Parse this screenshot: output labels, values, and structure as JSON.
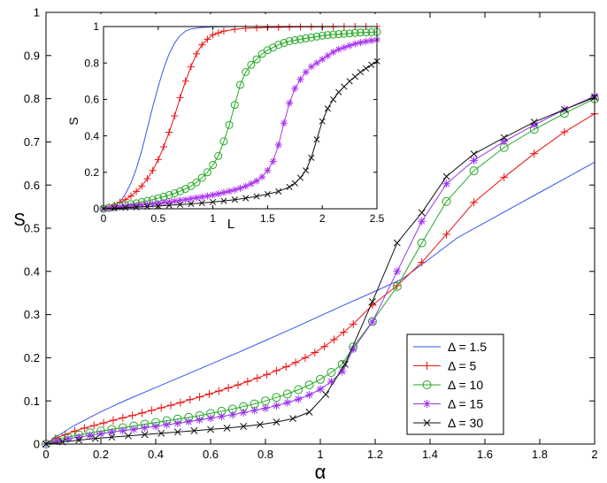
{
  "chart_data": [
    {
      "id": "main",
      "type": "line",
      "xlabel": "α",
      "ylabel": "S",
      "xlim": [
        0,
        2
      ],
      "ylim": [
        0,
        1
      ],
      "xticks": [
        0,
        0.2,
        0.4,
        0.6,
        0.8,
        1,
        1.2,
        1.4,
        1.6,
        1.8,
        2
      ],
      "xtick_labels": [
        "0",
        "0.2",
        "0.4",
        "0.6",
        "0.8",
        "1",
        "1.2",
        "1.4",
        "1.6",
        "1.8",
        "2"
      ],
      "yticks": [
        0,
        0.1,
        0.2,
        0.3,
        0.4,
        0.5,
        0.6,
        0.7,
        0.8,
        0.9,
        1
      ],
      "ytick_labels": [
        "0",
        "0.1",
        "0.2",
        "0.3",
        "0.4",
        "0.5",
        "0.6",
        "0.7",
        "0.8",
        "0.9",
        "1"
      ],
      "legend_position": "lower-right",
      "series": [
        {
          "name": "Δ = 1.5",
          "color": "#3355ee",
          "marker": "none",
          "x": [
            0,
            0.02,
            0.05,
            0.1,
            0.2,
            0.3,
            0.4,
            0.5,
            0.6,
            0.7,
            0.8,
            0.9,
            1.0,
            1.1,
            1.2,
            1.3,
            1.4,
            1.5,
            1.6,
            1.7,
            1.8,
            1.9,
            2.0
          ],
          "y": [
            0,
            0.01,
            0.022,
            0.042,
            0.075,
            0.104,
            0.131,
            0.158,
            0.185,
            0.212,
            0.24,
            0.268,
            0.297,
            0.326,
            0.354,
            0.383,
            0.43,
            0.478,
            0.513,
            0.548,
            0.583,
            0.618,
            0.653
          ]
        },
        {
          "name": "Δ = 5",
          "color": "#ee1111",
          "marker": "plus",
          "x": [
            0,
            0.035,
            0.07,
            0.105,
            0.14,
            0.175,
            0.21,
            0.245,
            0.28,
            0.315,
            0.35,
            0.385,
            0.42,
            0.455,
            0.49,
            0.525,
            0.56,
            0.595,
            0.63,
            0.665,
            0.7,
            0.735,
            0.77,
            0.805,
            0.84,
            0.875,
            0.91,
            0.945,
            0.98,
            1.015,
            1.05,
            1.085,
            1.12,
            1.19,
            1.28,
            1.37,
            1.46,
            1.56,
            1.67,
            1.78,
            1.89,
            2.0
          ],
          "y": [
            0,
            0.013,
            0.022,
            0.03,
            0.037,
            0.043,
            0.049,
            0.055,
            0.061,
            0.066,
            0.072,
            0.078,
            0.084,
            0.09,
            0.096,
            0.103,
            0.109,
            0.116,
            0.123,
            0.13,
            0.137,
            0.145,
            0.153,
            0.161,
            0.17,
            0.179,
            0.189,
            0.2,
            0.212,
            0.226,
            0.242,
            0.259,
            0.278,
            0.322,
            0.367,
            0.421,
            0.486,
            0.56,
            0.618,
            0.673,
            0.723,
            0.765
          ]
        },
        {
          "name": "Δ = 10",
          "color": "#22aa22",
          "marker": "circle",
          "x": [
            0,
            0.04,
            0.08,
            0.12,
            0.16,
            0.2,
            0.24,
            0.28,
            0.32,
            0.36,
            0.4,
            0.44,
            0.48,
            0.52,
            0.56,
            0.6,
            0.64,
            0.68,
            0.72,
            0.76,
            0.8,
            0.84,
            0.88,
            0.92,
            0.96,
            1.0,
            1.04,
            1.08,
            1.12,
            1.19,
            1.28,
            1.37,
            1.46,
            1.56,
            1.67,
            1.78,
            1.89,
            2.0
          ],
          "y": [
            0,
            0.01,
            0.016,
            0.021,
            0.026,
            0.03,
            0.034,
            0.038,
            0.042,
            0.046,
            0.05,
            0.054,
            0.058,
            0.062,
            0.066,
            0.071,
            0.076,
            0.081,
            0.087,
            0.093,
            0.1,
            0.108,
            0.116,
            0.126,
            0.137,
            0.15,
            0.166,
            0.185,
            0.225,
            0.284,
            0.365,
            0.466,
            0.562,
            0.633,
            0.687,
            0.729,
            0.766,
            0.8
          ]
        },
        {
          "name": "Δ = 15",
          "color": "#9933ee",
          "marker": "star",
          "x": [
            0,
            0.04,
            0.08,
            0.12,
            0.16,
            0.2,
            0.24,
            0.28,
            0.32,
            0.36,
            0.4,
            0.44,
            0.48,
            0.52,
            0.56,
            0.6,
            0.64,
            0.68,
            0.72,
            0.76,
            0.8,
            0.84,
            0.88,
            0.92,
            0.96,
            1.0,
            1.04,
            1.08,
            1.12,
            1.19,
            1.28,
            1.37,
            1.46,
            1.56,
            1.67,
            1.78,
            1.89,
            2.0
          ],
          "y": [
            0,
            0.007,
            0.012,
            0.016,
            0.02,
            0.024,
            0.028,
            0.031,
            0.034,
            0.038,
            0.041,
            0.045,
            0.048,
            0.052,
            0.056,
            0.06,
            0.064,
            0.068,
            0.073,
            0.078,
            0.083,
            0.089,
            0.096,
            0.104,
            0.114,
            0.127,
            0.145,
            0.168,
            0.22,
            0.283,
            0.4,
            0.516,
            0.603,
            0.657,
            0.701,
            0.739,
            0.775,
            0.806
          ]
        },
        {
          "name": "Δ = 30",
          "color": "#111111",
          "marker": "x",
          "x": [
            0,
            0.06,
            0.12,
            0.18,
            0.24,
            0.3,
            0.36,
            0.42,
            0.48,
            0.54,
            0.6,
            0.66,
            0.72,
            0.78,
            0.84,
            0.9,
            0.96,
            1.02,
            1.09,
            1.19,
            1.28,
            1.37,
            1.46,
            1.56,
            1.67,
            1.78,
            1.89,
            2.0
          ],
          "y": [
            0,
            0.005,
            0.009,
            0.013,
            0.016,
            0.019,
            0.022,
            0.025,
            0.028,
            0.031,
            0.034,
            0.037,
            0.041,
            0.045,
            0.051,
            0.059,
            0.074,
            0.115,
            0.185,
            0.33,
            0.466,
            0.536,
            0.62,
            0.672,
            0.71,
            0.746,
            0.775,
            0.803
          ]
        }
      ]
    },
    {
      "id": "inset",
      "type": "line",
      "xlabel": "L",
      "ylabel": "S",
      "xlim": [
        0,
        2.5
      ],
      "ylim": [
        0,
        1
      ],
      "xticks": [
        0,
        0.5,
        1,
        1.5,
        2,
        2.5
      ],
      "xtick_labels": [
        "0",
        "0.5",
        "1",
        "1.5",
        "2",
        "2.5"
      ],
      "yticks": [
        0,
        0.2,
        0.4,
        0.6,
        0.8,
        1
      ],
      "ytick_labels": [
        "0",
        "0.2",
        "0.4",
        "0.6",
        "0.8",
        "1"
      ],
      "series": [
        {
          "name": "Δ = 1.5",
          "color": "#3355ee",
          "marker": "none",
          "x": [
            0,
            0.05,
            0.1,
            0.15,
            0.2,
            0.25,
            0.3,
            0.35,
            0.4,
            0.45,
            0.5,
            0.55,
            0.6,
            0.65,
            0.7,
            0.75,
            0.8,
            0.9,
            1.0,
            1.2,
            1.5,
            2.0,
            2.5
          ],
          "y": [
            0,
            0.005,
            0.02,
            0.04,
            0.08,
            0.14,
            0.22,
            0.32,
            0.44,
            0.56,
            0.67,
            0.77,
            0.85,
            0.91,
            0.95,
            0.975,
            0.987,
            0.995,
            0.998,
            1.0,
            1.0,
            1.0,
            1.0
          ]
        },
        {
          "name": "Δ = 5",
          "color": "#ee1111",
          "marker": "plus",
          "x": [
            0,
            0.05,
            0.1,
            0.15,
            0.2,
            0.25,
            0.3,
            0.35,
            0.4,
            0.45,
            0.5,
            0.55,
            0.6,
            0.65,
            0.7,
            0.75,
            0.8,
            0.85,
            0.9,
            0.95,
            1.0,
            1.05,
            1.1,
            1.2,
            1.3,
            1.4,
            1.5,
            1.6,
            1.7,
            1.8,
            1.9,
            2.0,
            2.1,
            2.2,
            2.3,
            2.4,
            2.5
          ],
          "y": [
            0,
            0.01,
            0.02,
            0.035,
            0.05,
            0.07,
            0.095,
            0.125,
            0.165,
            0.21,
            0.27,
            0.34,
            0.42,
            0.51,
            0.61,
            0.7,
            0.78,
            0.85,
            0.9,
            0.93,
            0.955,
            0.965,
            0.975,
            0.985,
            0.99,
            0.993,
            0.995,
            0.996,
            0.997,
            0.998,
            0.998,
            0.999,
            0.999,
            1.0,
            1.0,
            1.0,
            1.0
          ]
        },
        {
          "name": "Δ = 10",
          "color": "#22aa22",
          "marker": "circle",
          "x": [
            0,
            0.05,
            0.1,
            0.15,
            0.2,
            0.25,
            0.3,
            0.35,
            0.4,
            0.45,
            0.5,
            0.55,
            0.6,
            0.65,
            0.7,
            0.75,
            0.8,
            0.85,
            0.9,
            0.95,
            1.0,
            1.05,
            1.1,
            1.15,
            1.2,
            1.25,
            1.3,
            1.35,
            1.4,
            1.45,
            1.5,
            1.55,
            1.6,
            1.65,
            1.7,
            1.75,
            1.8,
            1.85,
            1.9,
            1.95,
            2.0,
            2.05,
            2.1,
            2.15,
            2.2,
            2.25,
            2.3,
            2.35,
            2.4,
            2.45,
            2.5
          ],
          "y": [
            0,
            0.005,
            0.01,
            0.015,
            0.02,
            0.025,
            0.03,
            0.037,
            0.043,
            0.05,
            0.058,
            0.066,
            0.075,
            0.085,
            0.096,
            0.109,
            0.125,
            0.145,
            0.17,
            0.2,
            0.24,
            0.29,
            0.37,
            0.46,
            0.57,
            0.68,
            0.75,
            0.79,
            0.82,
            0.85,
            0.87,
            0.885,
            0.9,
            0.91,
            0.92,
            0.925,
            0.93,
            0.935,
            0.94,
            0.945,
            0.95,
            0.953,
            0.956,
            0.958,
            0.96,
            0.962,
            0.965,
            0.967,
            0.968,
            0.969,
            0.97
          ]
        },
        {
          "name": "Δ = 15",
          "color": "#aa33ee",
          "marker": "star",
          "x": [
            0,
            0.05,
            0.1,
            0.15,
            0.2,
            0.25,
            0.3,
            0.35,
            0.4,
            0.45,
            0.5,
            0.55,
            0.6,
            0.65,
            0.7,
            0.75,
            0.8,
            0.85,
            0.9,
            0.95,
            1.0,
            1.05,
            1.1,
            1.15,
            1.2,
            1.25,
            1.3,
            1.35,
            1.4,
            1.45,
            1.5,
            1.55,
            1.6,
            1.65,
            1.7,
            1.75,
            1.8,
            1.85,
            1.9,
            1.95,
            2.0,
            2.05,
            2.1,
            2.15,
            2.2,
            2.25,
            2.3,
            2.35,
            2.4,
            2.45,
            2.5
          ],
          "y": [
            0,
            0.003,
            0.006,
            0.009,
            0.012,
            0.015,
            0.018,
            0.021,
            0.024,
            0.027,
            0.03,
            0.034,
            0.038,
            0.042,
            0.046,
            0.05,
            0.055,
            0.06,
            0.065,
            0.07,
            0.076,
            0.082,
            0.089,
            0.096,
            0.104,
            0.113,
            0.124,
            0.137,
            0.153,
            0.175,
            0.21,
            0.26,
            0.35,
            0.47,
            0.58,
            0.66,
            0.71,
            0.75,
            0.78,
            0.8,
            0.82,
            0.84,
            0.86,
            0.875,
            0.885,
            0.895,
            0.905,
            0.912,
            0.918,
            0.923,
            0.927
          ]
        },
        {
          "name": "Δ = 30",
          "color": "#111111",
          "marker": "x",
          "x": [
            0,
            0.1,
            0.2,
            0.3,
            0.4,
            0.5,
            0.6,
            0.7,
            0.8,
            0.9,
            1.0,
            1.1,
            1.2,
            1.3,
            1.4,
            1.5,
            1.6,
            1.7,
            1.75,
            1.8,
            1.85,
            1.9,
            1.95,
            2.0,
            2.05,
            2.1,
            2.15,
            2.2,
            2.25,
            2.3,
            2.35,
            2.4,
            2.45,
            2.5
          ],
          "y": [
            0,
            0.003,
            0.006,
            0.009,
            0.012,
            0.015,
            0.019,
            0.023,
            0.027,
            0.032,
            0.037,
            0.043,
            0.05,
            0.058,
            0.068,
            0.08,
            0.095,
            0.12,
            0.14,
            0.17,
            0.21,
            0.28,
            0.38,
            0.48,
            0.55,
            0.6,
            0.64,
            0.67,
            0.7,
            0.725,
            0.75,
            0.77,
            0.79,
            0.81
          ]
        }
      ]
    }
  ]
}
